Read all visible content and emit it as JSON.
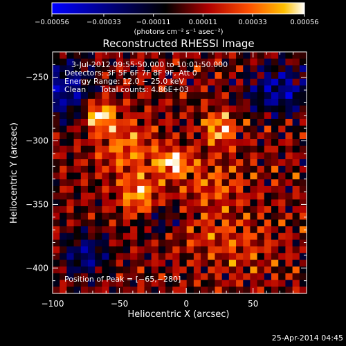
{
  "chart_data": {
    "type": "heatmap",
    "title": "Reconstructed RHESSI Image",
    "xlabel": "Heliocentric X (arcsec)",
    "ylabel": "Heliocentric Y (arcsec)",
    "xlim": [
      -100,
      90
    ],
    "ylim": [
      -420,
      -230
    ],
    "x_ticks": [
      -100,
      -50,
      0,
      50
    ],
    "x_tick_labels": [
      "−100",
      "−50",
      "0",
      "50"
    ],
    "y_ticks": [
      -250,
      -300,
      -350,
      -400
    ],
    "y_tick_labels": [
      "−250",
      "−300",
      "−350",
      "−400"
    ],
    "colorbar": {
      "range": [
        -0.00056,
        0.00056
      ],
      "ticks": [
        -0.00056,
        -0.00033,
        -0.00011,
        0.00011,
        0.00033,
        0.00056
      ],
      "tick_labels": [
        "−0.00056",
        "−0.00033",
        "−0.00011",
        "0.00011",
        "0.00033",
        "0.00056"
      ],
      "unit_label": "(photons cm⁻² s⁻¹ asec⁻²)"
    },
    "annotations": {
      "time_range": "3‐Jul‐2012 09:55:50.000 to 10:01:50.000",
      "detectors": "Detectors: 3F 5F 6F 7F 8F 9F, Att 0",
      "energy_range": "Energy Range: 12.0 − 25.0 keV",
      "method": "Clean",
      "total_counts": "Total counts: 4.86E+03",
      "peak_position": "Position of Peak = [−65,−280]",
      "timestamp": "25-Apr-2014 04:45"
    },
    "peak": {
      "x": -65,
      "y": -280
    },
    "sources": [
      {
        "x": -65,
        "y": -280,
        "amp": 1.0,
        "sx": 8,
        "sy": 8
      },
      {
        "x": -10,
        "y": -317,
        "amp": 0.95,
        "sx": 9,
        "sy": 7
      },
      {
        "x": 25,
        "y": -290,
        "amp": 0.85,
        "sx": 8,
        "sy": 9
      },
      {
        "x": -35,
        "y": -345,
        "amp": 0.75,
        "sx": 10,
        "sy": 12
      },
      {
        "x": -45,
        "y": -305,
        "amp": 0.55,
        "sx": 15,
        "sy": 15
      },
      {
        "x": 20,
        "y": -335,
        "amp": 0.4,
        "sx": 18,
        "sy": 14
      },
      {
        "x": -5,
        "y": -370,
        "amp": 0.35,
        "sx": 25,
        "sy": 10
      },
      {
        "x": 40,
        "y": -385,
        "amp": 0.3,
        "sx": 20,
        "sy": 15
      }
    ],
    "grid": false
  }
}
